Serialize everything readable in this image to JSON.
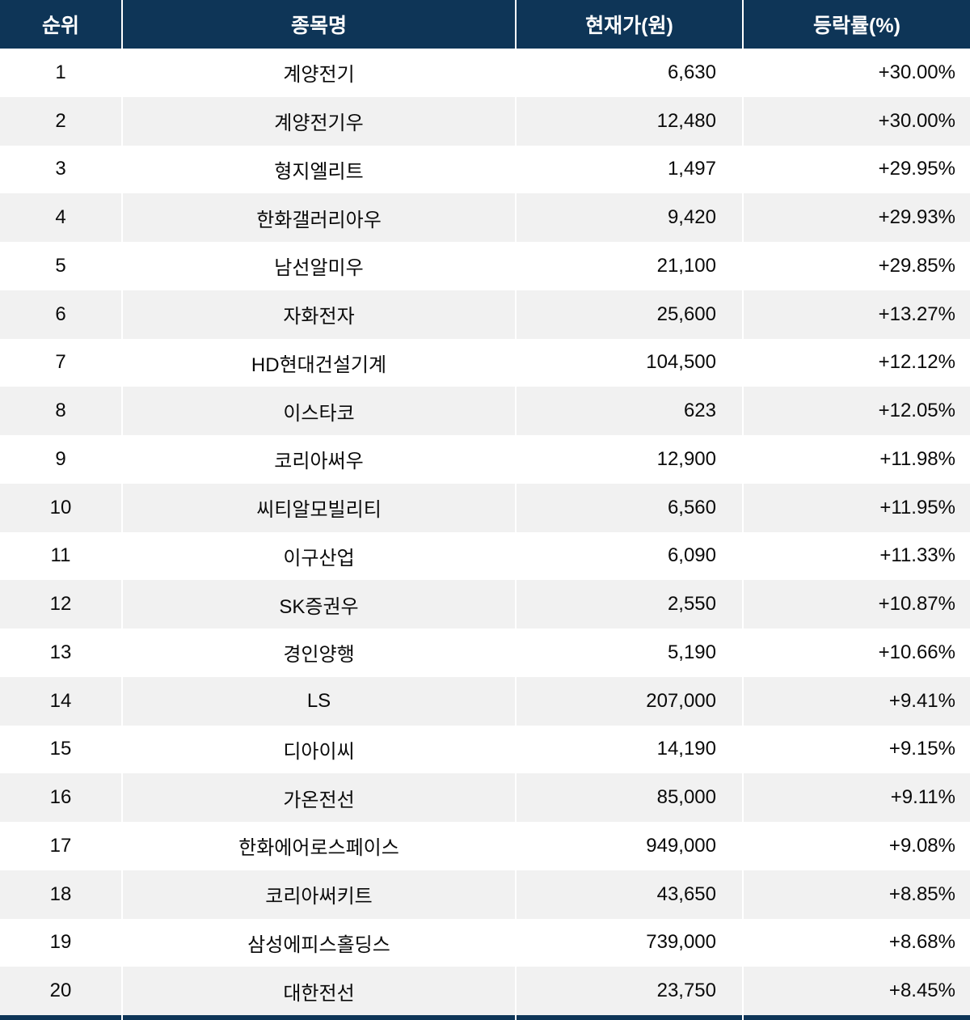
{
  "table": {
    "headers": [
      "순위",
      "종목명",
      "현재가(원)",
      "등락률(%)"
    ],
    "rows": [
      {
        "rank": "1",
        "name": "계양전기",
        "price": "6,630",
        "change": "+30.00%"
      },
      {
        "rank": "2",
        "name": "계양전기우",
        "price": "12,480",
        "change": "+30.00%"
      },
      {
        "rank": "3",
        "name": "형지엘리트",
        "price": "1,497",
        "change": "+29.95%"
      },
      {
        "rank": "4",
        "name": "한화갤러리아우",
        "price": "9,420",
        "change": "+29.93%"
      },
      {
        "rank": "5",
        "name": "남선알미우",
        "price": "21,100",
        "change": "+29.85%"
      },
      {
        "rank": "6",
        "name": "자화전자",
        "price": "25,600",
        "change": "+13.27%"
      },
      {
        "rank": "7",
        "name": "HD현대건설기계",
        "price": "104,500",
        "change": "+12.12%"
      },
      {
        "rank": "8",
        "name": "이스타코",
        "price": "623",
        "change": "+12.05%"
      },
      {
        "rank": "9",
        "name": "코리아써우",
        "price": "12,900",
        "change": "+11.98%"
      },
      {
        "rank": "10",
        "name": "씨티알모빌리티",
        "price": "6,560",
        "change": "+11.95%"
      },
      {
        "rank": "11",
        "name": "이구산업",
        "price": "6,090",
        "change": "+11.33%"
      },
      {
        "rank": "12",
        "name": "SK증권우",
        "price": "2,550",
        "change": "+10.87%"
      },
      {
        "rank": "13",
        "name": "경인양행",
        "price": "5,190",
        "change": "+10.66%"
      },
      {
        "rank": "14",
        "name": "LS",
        "price": "207,000",
        "change": "+9.41%"
      },
      {
        "rank": "15",
        "name": "디아이씨",
        "price": "14,190",
        "change": "+9.15%"
      },
      {
        "rank": "16",
        "name": "가온전선",
        "price": "85,000",
        "change": "+9.11%"
      },
      {
        "rank": "17",
        "name": "한화에어로스페이스",
        "price": "949,000",
        "change": "+9.08%"
      },
      {
        "rank": "18",
        "name": "코리아써키트",
        "price": "43,650",
        "change": "+8.85%"
      },
      {
        "rank": "19",
        "name": "삼성에피스홀딩스",
        "price": "739,000",
        "change": "+8.68%"
      },
      {
        "rank": "20",
        "name": "대한전선",
        "price": "23,750",
        "change": "+8.45%"
      }
    ]
  },
  "chart_data": {
    "type": "table",
    "title": "",
    "columns": [
      "순위",
      "종목명",
      "현재가(원)",
      "등락률(%)"
    ],
    "rows": [
      [
        1,
        "계양전기",
        6630,
        30.0
      ],
      [
        2,
        "계양전기우",
        12480,
        30.0
      ],
      [
        3,
        "형지엘리트",
        1497,
        29.95
      ],
      [
        4,
        "한화갤러리아우",
        9420,
        29.93
      ],
      [
        5,
        "남선알미우",
        21100,
        29.85
      ],
      [
        6,
        "자화전자",
        25600,
        13.27
      ],
      [
        7,
        "HD현대건설기계",
        104500,
        12.12
      ],
      [
        8,
        "이스타코",
        623,
        12.05
      ],
      [
        9,
        "코리아써우",
        12900,
        11.98
      ],
      [
        10,
        "씨티알모빌리티",
        6560,
        11.95
      ],
      [
        11,
        "이구산업",
        6090,
        11.33
      ],
      [
        12,
        "SK증권우",
        2550,
        10.87
      ],
      [
        13,
        "경인양행",
        5190,
        10.66
      ],
      [
        14,
        "LS",
        207000,
        9.41
      ],
      [
        15,
        "디아이씨",
        14190,
        9.15
      ],
      [
        16,
        "가온전선",
        85000,
        9.11
      ],
      [
        17,
        "한화에어로스페이스",
        949000,
        9.08
      ],
      [
        18,
        "코리아써키트",
        43650,
        8.85
      ],
      [
        19,
        "삼성에피스홀딩스",
        739000,
        8.68
      ],
      [
        20,
        "대한전선",
        23750,
        8.45
      ]
    ]
  },
  "colors": {
    "header_bg": "#0e3557",
    "header_text": "#ffffff",
    "row_bg": "#ffffff",
    "row_alt_bg": "#f1f1f1",
    "cell_text": "#0a0a0a",
    "divider": "#ffffff"
  }
}
